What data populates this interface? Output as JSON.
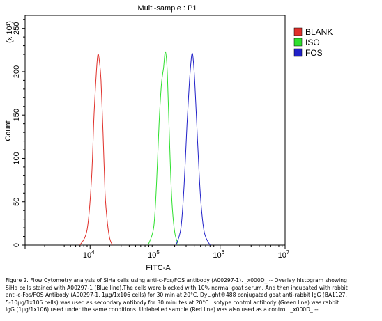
{
  "chart_data": {
    "type": "line",
    "title": "Multi-sample : P1",
    "xlabel": "FITC-A",
    "ylabel": "Count",
    "y_multiplier": "(x 10¹)",
    "x_scale": "log",
    "xlim": [
      1000,
      10000000
    ],
    "ylim": [
      0,
      265
    ],
    "x_ticks": [
      {
        "value": 10000,
        "base": "10",
        "exp": "4"
      },
      {
        "value": 100000,
        "base": "10",
        "exp": "5"
      },
      {
        "value": 1000000,
        "base": "10",
        "exp": "6"
      },
      {
        "value": 10000000,
        "base": "10",
        "exp": "7"
      }
    ],
    "y_ticks": [
      {
        "value": 0,
        "label": "0"
      },
      {
        "value": 50,
        "label": "50"
      },
      {
        "value": 100,
        "label": "100"
      },
      {
        "value": 150,
        "label": "150"
      },
      {
        "value": 200,
        "label": "200"
      },
      {
        "value": 250,
        "label": "250"
      }
    ],
    "grid": false,
    "legend_position": "right",
    "series": [
      {
        "name": "BLANK",
        "color": "#e0302a",
        "x": [
          7000,
          9000,
          10500,
          11500,
          12500,
          13200,
          13900,
          14700,
          15800,
          17000,
          18500,
          20000,
          22000
        ],
        "values": [
          0,
          18,
          75,
          150,
          200,
          220,
          212,
          190,
          130,
          60,
          25,
          8,
          0
        ]
      },
      {
        "name": "ISO",
        "color": "#2ee02e",
        "x": [
          78000,
          95000,
          105000,
          115000,
          125000,
          135000,
          142000,
          148000,
          155000,
          165000,
          180000,
          200000,
          230000
        ],
        "values": [
          0,
          20,
          70,
          140,
          185,
          205,
          222,
          218,
          195,
          130,
          55,
          15,
          0
        ]
      },
      {
        "name": "FOS",
        "color": "#2020c8",
        "x": [
          210000,
          250000,
          280000,
          310000,
          335000,
          355000,
          370000,
          385000,
          410000,
          450000,
          500000,
          570000,
          700000
        ],
        "values": [
          0,
          20,
          70,
          140,
          185,
          210,
          221,
          215,
          185,
          120,
          55,
          15,
          0
        ]
      }
    ]
  },
  "caption_lines": [
    "Figure 2. Flow Cytometry analysis of SiHa cells using anti-c-Fos/FOS antibody (A00297-1). _x000D_ -- Overlay histogram showing",
    "SiHa cells stained with A00297-1 (Blue line).The cells were blocked with 10% normal goat serum. And then incubated with rabbit",
    "anti-c-Fos/FOS Antibody (A00297-1, 1μg/1x106 cells) for 30 min at 20°C. DyLight®488 conjugated goat anti-rabbit IgG (BA1127,",
    "5-10μg/1x106 cells) was used as secondary antibody for 30 minutes at 20°C. Isotype control antibody (Green line) was rabbit",
    "IgG (1μg/1x106) used under the same conditions. Unlabelled sample (Red line) was also used as a control. _x000D_ --"
  ]
}
